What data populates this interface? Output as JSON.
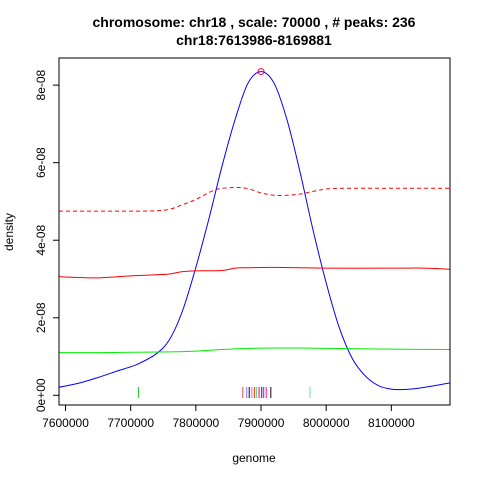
{
  "chart_data": {
    "type": "line",
    "title": "chromosome: chr18 , scale: 70000 , # peaks: 236",
    "subtitle": "chr18:7613986-8169881",
    "xlabel": "genome",
    "ylabel": "density",
    "xlim": [
      7590000,
      8190000
    ],
    "ylim": [
      -2.5e-09,
      8.7e-08
    ],
    "grid": false,
    "x_ticks": [
      {
        "value": 7600000,
        "label": "7600000"
      },
      {
        "value": 7700000,
        "label": "7700000"
      },
      {
        "value": 7800000,
        "label": "7800000"
      },
      {
        "value": 7900000,
        "label": "7900000"
      },
      {
        "value": 8000000,
        "label": "8000000"
      },
      {
        "value": 8100000,
        "label": "8100000"
      }
    ],
    "y_ticks": [
      {
        "value": 0,
        "label": "0e+00"
      },
      {
        "value": 2e-08,
        "label": "2e-08"
      },
      {
        "value": 4e-08,
        "label": "4e-08"
      },
      {
        "value": 6e-08,
        "label": "6e-08"
      },
      {
        "value": 8e-08,
        "label": "8e-08"
      }
    ],
    "series": [
      {
        "color": "#0000ff",
        "style": "solid",
        "x": [
          7590000,
          7620000,
          7650000,
          7680000,
          7710000,
          7740000,
          7760000,
          7780000,
          7800000,
          7820000,
          7840000,
          7860000,
          7880000,
          7900000,
          7920000,
          7940000,
          7960000,
          7980000,
          8000000,
          8020000,
          8040000,
          8060000,
          8080000,
          8100000,
          8120000,
          8140000,
          8160000,
          8190000
        ],
        "y": [
          2.1e-09,
          3.1e-09,
          4.6e-09,
          6.3e-09,
          8e-09,
          1.08e-08,
          1.45e-08,
          2.2e-08,
          3.3e-08,
          4.55e-08,
          5.9e-08,
          7.1e-08,
          8.05e-08,
          8.35e-08,
          8.05e-08,
          7.1e-08,
          5.75e-08,
          4.25e-08,
          2.9e-08,
          1.75e-08,
          9.5e-09,
          5e-09,
          2.5e-09,
          1.6e-09,
          1.5e-09,
          1.8e-09,
          2.3e-09,
          3.2e-09
        ]
      },
      {
        "color": "#ff0000",
        "style": "dashed",
        "x": [
          7590000,
          7650000,
          7700000,
          7740000,
          7760000,
          7780000,
          7800000,
          7830000,
          7860000,
          7880000,
          7900000,
          7920000,
          7940000,
          7960000,
          7980000,
          8000000,
          8020000,
          8060000,
          8100000,
          8190000
        ],
        "y": [
          4.75e-08,
          4.75e-08,
          4.75e-08,
          4.76e-08,
          4.8e-08,
          4.92e-08,
          5.05e-08,
          5.3e-08,
          5.36e-08,
          5.33e-08,
          5.22e-08,
          5.16e-08,
          5.16e-08,
          5.19e-08,
          5.26e-08,
          5.32e-08,
          5.34e-08,
          5.34e-08,
          5.34e-08,
          5.34e-08
        ]
      },
      {
        "color": "#ff0000",
        "style": "solid",
        "x": [
          7590000,
          7620000,
          7650000,
          7700000,
          7740000,
          7760000,
          7780000,
          7800000,
          7840000,
          7860000,
          7880000,
          7920000,
          8000000,
          8100000,
          8150000,
          8190000
        ],
        "y": [
          3.06e-08,
          3.04e-08,
          3.03e-08,
          3.08e-08,
          3.11e-08,
          3.13e-08,
          3.19e-08,
          3.21e-08,
          3.22e-08,
          3.28e-08,
          3.29e-08,
          3.3e-08,
          3.28e-08,
          3.28e-08,
          3.28e-08,
          3.25e-08
        ]
      },
      {
        "color": "#00ee00",
        "style": "solid",
        "x": [
          7590000,
          7650000,
          7700000,
          7760000,
          7800000,
          7840000,
          7880000,
          7920000,
          7960000,
          8000000,
          8050000,
          8100000,
          8190000
        ],
        "y": [
          1.1e-08,
          1.1e-08,
          1.11e-08,
          1.12e-08,
          1.14e-08,
          1.18e-08,
          1.21e-08,
          1.22e-08,
          1.22e-08,
          1.21e-08,
          1.2e-08,
          1.19e-08,
          1.18e-08
        ]
      }
    ],
    "peak_marker": {
      "x": 7900000,
      "y": 8.35e-08,
      "color": "#ff0044"
    },
    "rug": [
      {
        "x": 7712000,
        "color": "#33cc33"
      },
      {
        "x": 7872000,
        "color": "#ff6666"
      },
      {
        "x": 7878000,
        "color": "#8888ff"
      },
      {
        "x": 7882000,
        "color": "#333333"
      },
      {
        "x": 7886000,
        "color": "#ff66ff"
      },
      {
        "x": 7890000,
        "color": "#cc6600"
      },
      {
        "x": 7893000,
        "color": "#66cccc"
      },
      {
        "x": 7897000,
        "color": "#ff3333"
      },
      {
        "x": 7901000,
        "color": "#3333ff"
      },
      {
        "x": 7904000,
        "color": "#cc33cc"
      },
      {
        "x": 7908000,
        "color": "#ff3399"
      },
      {
        "x": 7915000,
        "color": "#333333"
      },
      {
        "x": 7975000,
        "color": "#66eeee"
      }
    ]
  }
}
